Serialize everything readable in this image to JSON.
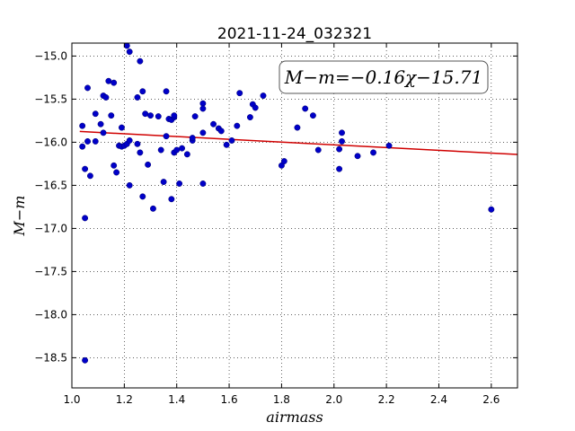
{
  "chart_data": {
    "type": "scatter",
    "title": "2021-11-24_032321",
    "xlabel": "airmass",
    "ylabel": "M−m",
    "xlim": [
      1.0,
      2.7
    ],
    "ylim": [
      -18.85,
      -14.85
    ],
    "y_inverted": true,
    "grid": true,
    "x_ticks": [
      1.0,
      1.2,
      1.4,
      1.6,
      1.8,
      2.0,
      2.2,
      2.4,
      2.6
    ],
    "x_tick_labels": [
      "1.0",
      "1.2",
      "1.4",
      "1.6",
      "1.8",
      "2.0",
      "2.2",
      "2.4",
      "2.6"
    ],
    "y_ticks": [
      -15.0,
      -15.5,
      -16.0,
      -16.5,
      -17.0,
      -17.5,
      -18.0,
      -18.5
    ],
    "y_tick_labels": [
      "−15.0",
      "−15.5",
      "−16.0",
      "−16.5",
      "−17.0",
      "−17.5",
      "−18.0",
      "−18.5"
    ],
    "annotation": "M−m=−0.16χ−15.71",
    "fit": {
      "slope": -0.16,
      "intercept": -15.71,
      "x_range": [
        1.03,
        2.7
      ],
      "color": "#d00000"
    },
    "points_color": "#0000c8",
    "points": [
      [
        1.04,
        -15.81
      ],
      [
        1.04,
        -16.05
      ],
      [
        1.05,
        -16.31
      ],
      [
        1.05,
        -16.88
      ],
      [
        1.05,
        -18.53
      ],
      [
        1.06,
        -15.99
      ],
      [
        1.06,
        -15.37
      ],
      [
        1.07,
        -16.39
      ],
      [
        1.09,
        -15.67
      ],
      [
        1.09,
        -15.99
      ],
      [
        1.11,
        -15.79
      ],
      [
        1.12,
        -15.46
      ],
      [
        1.12,
        -15.89
      ],
      [
        1.13,
        -15.48
      ],
      [
        1.14,
        -15.29
      ],
      [
        1.15,
        -15.69
      ],
      [
        1.16,
        -15.31
      ],
      [
        1.16,
        -16.27
      ],
      [
        1.17,
        -16.35
      ],
      [
        1.18,
        -16.04
      ],
      [
        1.19,
        -15.83
      ],
      [
        1.19,
        -16.05
      ],
      [
        1.2,
        -16.04
      ],
      [
        1.21,
        -14.88
      ],
      [
        1.21,
        -16.02
      ],
      [
        1.22,
        -14.95
      ],
      [
        1.22,
        -15.98
      ],
      [
        1.22,
        -16.5
      ],
      [
        1.25,
        -15.48
      ],
      [
        1.25,
        -16.02
      ],
      [
        1.26,
        -16.12
      ],
      [
        1.26,
        -15.06
      ],
      [
        1.27,
        -15.41
      ],
      [
        1.27,
        -16.63
      ],
      [
        1.28,
        -15.67
      ],
      [
        1.29,
        -16.26
      ],
      [
        1.3,
        -15.69
      ],
      [
        1.31,
        -16.77
      ],
      [
        1.33,
        -15.7
      ],
      [
        1.34,
        -16.09
      ],
      [
        1.35,
        -16.46
      ],
      [
        1.36,
        -15.41
      ],
      [
        1.36,
        -15.93
      ],
      [
        1.37,
        -15.73
      ],
      [
        1.38,
        -16.66
      ],
      [
        1.38,
        -15.74
      ],
      [
        1.39,
        -15.71
      ],
      [
        1.39,
        -15.69
      ],
      [
        1.39,
        -16.12
      ],
      [
        1.4,
        -16.09
      ],
      [
        1.41,
        -16.48
      ],
      [
        1.42,
        -16.07
      ],
      [
        1.44,
        -16.14
      ],
      [
        1.46,
        -15.98
      ],
      [
        1.46,
        -15.95
      ],
      [
        1.47,
        -15.7
      ],
      [
        1.5,
        -15.89
      ],
      [
        1.5,
        -15.55
      ],
      [
        1.5,
        -15.61
      ],
      [
        1.5,
        -16.48
      ],
      [
        1.54,
        -15.79
      ],
      [
        1.56,
        -15.84
      ],
      [
        1.57,
        -15.87
      ],
      [
        1.59,
        -16.03
      ],
      [
        1.61,
        -15.98
      ],
      [
        1.63,
        -15.81
      ],
      [
        1.64,
        -15.43
      ],
      [
        1.68,
        -15.71
      ],
      [
        1.69,
        -15.56
      ],
      [
        1.7,
        -15.6
      ],
      [
        1.73,
        -15.46
      ],
      [
        1.8,
        -16.27
      ],
      [
        1.81,
        -16.22
      ],
      [
        1.86,
        -15.83
      ],
      [
        1.89,
        -15.61
      ],
      [
        1.92,
        -15.69
      ],
      [
        1.94,
        -16.09
      ],
      [
        2.02,
        -16.08
      ],
      [
        2.02,
        -16.31
      ],
      [
        2.03,
        -15.99
      ],
      [
        2.03,
        -15.89
      ],
      [
        2.09,
        -16.16
      ],
      [
        2.15,
        -16.12
      ],
      [
        2.21,
        -16.04
      ],
      [
        2.6,
        -16.78
      ]
    ]
  }
}
